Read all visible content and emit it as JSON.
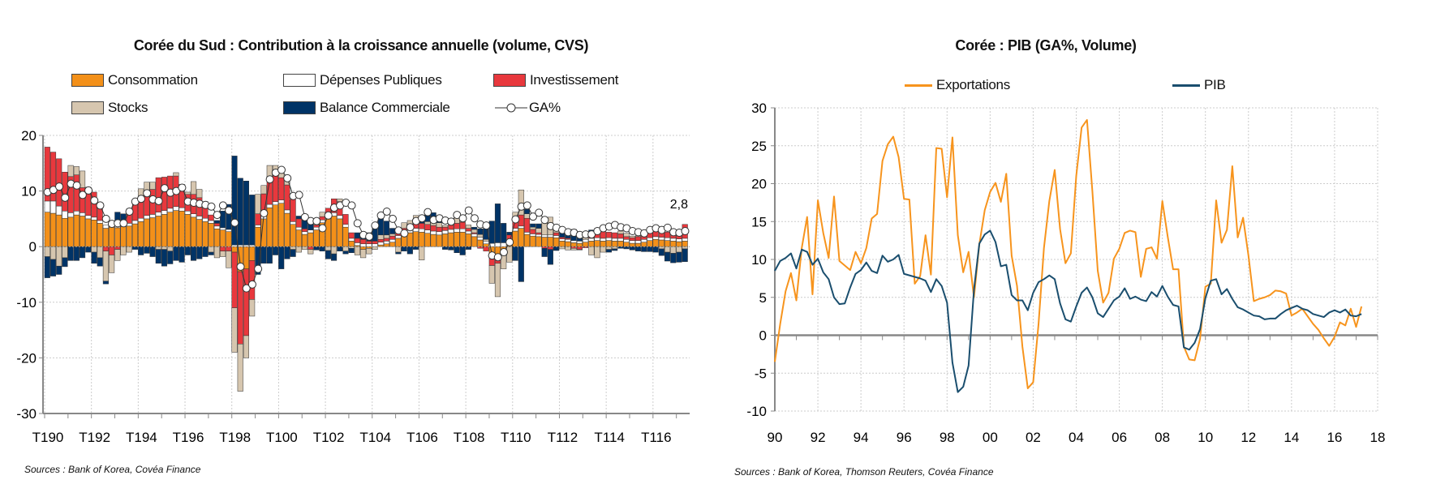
{
  "colors": {
    "consommation": "#F39019",
    "depenses": "#FFFFFF",
    "investissement": "#E8383D",
    "stocks": "#D6C6AF",
    "balance": "#003366",
    "exportations": "#F7941D",
    "pib": "#1A4E6E"
  },
  "chart_data": [
    {
      "type": "bar",
      "stacked": true,
      "title": "Corée du Sud : Contribution à la croissance annuelle (volume, CVS)",
      "source": "Sources : Bank of Korea, Covéa Finance",
      "frequency": "quarterly",
      "start": "1990Q1",
      "ylim": [
        -30,
        20
      ],
      "yticks": [
        "20",
        "10",
        "0",
        "-10",
        "-20",
        "-30"
      ],
      "xtick_labels": [
        "T190",
        "T192",
        "T194",
        "T196",
        "T198",
        "T100",
        "T102",
        "T104",
        "T106",
        "T108",
        "T110",
        "T112",
        "T114",
        "T116"
      ],
      "grid": true,
      "legend_position": "top",
      "last_label": "2,8",
      "series": [
        {
          "name": "Consommation",
          "values": [
            6.2,
            6.0,
            5.7,
            5.1,
            5.3,
            5.7,
            5.5,
            5.0,
            4.8,
            4.2,
            3.3,
            3.5,
            3.4,
            3.6,
            3.7,
            4.1,
            4.5,
            5.0,
            5.2,
            5.5,
            5.8,
            6.2,
            6.5,
            6.4,
            5.8,
            5.3,
            4.9,
            4.5,
            4.2,
            3.2,
            3.0,
            2.7,
            -1.0,
            -4.5,
            -4.0,
            -2.5,
            3.5,
            5.0,
            7.0,
            7.5,
            7.8,
            6.0,
            4.0,
            3.0,
            2.2,
            2.5,
            3.0,
            4.3,
            5.3,
            5.5,
            5.0,
            3.5,
            1.0,
            0.2,
            -0.5,
            -0.3,
            0.0,
            0.3,
            0.5,
            0.8,
            1.5,
            2.0,
            2.5,
            2.7,
            2.6,
            2.4,
            2.2,
            2.1,
            2.3,
            2.5,
            2.6,
            2.6,
            2.3,
            1.8,
            1.2,
            0.5,
            -1.3,
            -1.5,
            -1.0,
            0.5,
            2.8,
            3.3,
            2.2,
            1.9,
            1.8,
            1.7,
            1.7,
            1.6,
            1.0,
            0.9,
            0.7,
            0.6,
            0.8,
            1.0,
            1.1,
            1.0,
            1.1,
            1.0,
            1.0,
            0.8,
            0.6,
            0.6,
            0.8,
            1.1,
            1.3,
            1.2,
            1.1,
            1.0,
            0.9,
            1.0
          ]
        },
        {
          "name": "Dépenses Publiques",
          "values": [
            2.0,
            2.2,
            1.6,
            1.3,
            0.8,
            0.7,
            0.6,
            0.6,
            0.5,
            0.5,
            0.6,
            0.6,
            0.6,
            0.6,
            0.5,
            0.6,
            0.6,
            0.6,
            0.6,
            0.7,
            0.7,
            0.7,
            0.7,
            0.6,
            0.6,
            0.6,
            0.6,
            0.6,
            0.5,
            0.5,
            0.4,
            0.4,
            0.3,
            0.3,
            0.3,
            0.3,
            0.4,
            0.5,
            0.6,
            0.6,
            0.6,
            0.6,
            0.5,
            0.5,
            0.5,
            0.5,
            0.5,
            0.5,
            0.6,
            0.6,
            0.6,
            0.5,
            0.5,
            0.5,
            0.5,
            0.5,
            0.5,
            0.5,
            0.5,
            0.5,
            0.5,
            0.6,
            0.6,
            0.6,
            0.6,
            0.6,
            0.6,
            0.6,
            0.6,
            0.6,
            0.6,
            0.6,
            0.5,
            0.5,
            0.5,
            0.5,
            0.6,
            0.7,
            0.7,
            0.6,
            0.5,
            0.4,
            0.4,
            0.4,
            0.4,
            0.4,
            0.4,
            0.4,
            0.4,
            0.4,
            0.4,
            0.4,
            0.5,
            0.5,
            0.5,
            0.5,
            0.5,
            0.5,
            0.5,
            0.5,
            0.5,
            0.5,
            0.5,
            0.5,
            0.5,
            0.5,
            0.5,
            0.5,
            0.5,
            0.5
          ]
        },
        {
          "name": "Investissement",
          "values": [
            9.7,
            8.8,
            8.5,
            7.0,
            6.5,
            6.5,
            4.5,
            4.5,
            4.5,
            2.5,
            -0.8,
            -1.5,
            -0.5,
            0.5,
            2.0,
            3.5,
            4.0,
            4.0,
            4.5,
            6.2,
            6.0,
            5.8,
            5.5,
            3.0,
            3.0,
            3.5,
            3.3,
            2.0,
            1.0,
            0.5,
            -0.8,
            -0.8,
            -10.0,
            -13.0,
            -12.0,
            -7.0,
            2.0,
            4.0,
            5.0,
            5.0,
            4.0,
            4.5,
            4.0,
            1.5,
            0.5,
            -0.5,
            0.4,
            0.6,
            1.0,
            2.5,
            2.5,
            1.8,
            1.0,
            0.8,
            0.8,
            0.5,
            0.5,
            0.5,
            0.5,
            0.6,
            0.6,
            0.7,
            0.8,
            1.3,
            1.0,
            1.0,
            1.0,
            0.8,
            0.6,
            0.8,
            1.0,
            1.2,
            0.5,
            0.2,
            -0.3,
            -0.8,
            -2.1,
            -1.5,
            -0.5,
            1.0,
            2.0,
            2.0,
            2.5,
            0.8,
            0.3,
            -0.3,
            -0.5,
            0.5,
            0.3,
            0.2,
            -0.3,
            -0.5,
            -0.2,
            0.5,
            1.0,
            1.5,
            1.0,
            1.0,
            0.8,
            0.5,
            0.5,
            0.7,
            1.0,
            1.2,
            1.3,
            1.5,
            1.0,
            0.8,
            1.5,
            2.5
          ]
        },
        {
          "name": "Stocks",
          "values": [
            -1.8,
            -2.3,
            -3.5,
            -2.0,
            2.0,
            1.5,
            3.0,
            0.6,
            -1.0,
            -2.0,
            -5.4,
            -3.2,
            -2.0,
            -1.5,
            -1.0,
            0.3,
            1.3,
            2.0,
            1.3,
            -0.5,
            -0.5,
            -0.8,
            0.6,
            1.2,
            0.4,
            2.3,
            1.5,
            1.0,
            -1.0,
            -2.0,
            -1.0,
            -3.0,
            -8.0,
            -8.5,
            -4.0,
            -3.0,
            3.5,
            1.5,
            2.0,
            1.5,
            1.0,
            0.8,
            -0.5,
            -1.0,
            -0.5,
            -0.8,
            0.5,
            0.8,
            -0.7,
            -1.3,
            0.5,
            -0.8,
            -0.3,
            -1.5,
            -1.5,
            -1.0,
            -0.5,
            0.8,
            0.6,
            0.4,
            -1.0,
            1.0,
            0.8,
            1.0,
            -2.4,
            0.5,
            1.0,
            0.8,
            0.3,
            0.4,
            1.1,
            1.2,
            0.6,
            0.6,
            0.5,
            0.3,
            -3.2,
            -6.0,
            -2.5,
            -2.8,
            0.9,
            4.5,
            0.8,
            0.4,
            0.8,
            2.5,
            3.2,
            0.5,
            -0.4,
            -0.6,
            -0.3,
            -0.1,
            0.6,
            -1.5,
            -2.0,
            -1.0,
            -0.5,
            -0.4,
            0.5,
            0.6,
            0.3,
            0.2,
            0.4,
            0.6,
            0.5,
            -0.4,
            -1.0,
            -1.2,
            -1.0,
            -0.4
          ]
        },
        {
          "name": "Balance Commerciale",
          "values": [
            -3.8,
            -3.0,
            -1.5,
            -1.6,
            -2.5,
            -2.5,
            -2.0,
            -1.0,
            -2.0,
            -1.5,
            -0.5,
            0.5,
            2.2,
            1.2,
            0.6,
            -0.5,
            -1.5,
            -1.2,
            -1.8,
            -2.5,
            -3.0,
            -2.3,
            -2.5,
            -2.8,
            -1.5,
            -2.5,
            -2.2,
            -1.8,
            -0.5,
            0.5,
            3.0,
            4.5,
            16.0,
            12.0,
            11.5,
            9.0,
            -5.0,
            -3.0,
            -3.0,
            -1.5,
            -4.0,
            -2.2,
            -1.3,
            0.5,
            2.0,
            1.5,
            -0.6,
            -0.8,
            -1.5,
            -1.2,
            -0.8,
            -0.5,
            -0.8,
            1.0,
            1.0,
            1.5,
            2.5,
            3.0,
            2.5,
            1.0,
            -0.3,
            -0.8,
            -1.3,
            -0.5,
            0.5,
            1.5,
            1.3,
            0.6,
            -0.5,
            -0.6,
            -1.1,
            -1.5,
            -0.5,
            0.4,
            1.0,
            2.0,
            4.0,
            7.0,
            3.5,
            0.5,
            -2.5,
            -6.3,
            0.8,
            0.6,
            0.8,
            -1.5,
            -2.7,
            -0.7,
            1.0,
            1.5,
            2.0,
            1.2,
            0.5,
            1.0,
            0.7,
            0.5,
            -0.5,
            -0.3,
            -0.3,
            -0.4,
            -0.6,
            -0.8,
            -0.9,
            -0.9,
            -1.0,
            -1.2,
            -1.6,
            -1.7,
            -1.8,
            -2.3
          ]
        },
        {
          "name": "GA%",
          "type": "line",
          "values": [
            9.8,
            10.2,
            10.8,
            8.8,
            11.3,
            11.0,
            9.3,
            10.1,
            8.3,
            7.4,
            5.0,
            4.1,
            4.2,
            4.2,
            6.3,
            8.1,
            8.6,
            9.6,
            8.5,
            8.2,
            10.5,
            9.7,
            10.0,
            10.6,
            8.1,
            7.9,
            7.7,
            7.5,
            7.2,
            5.7,
            7.4,
            6.5,
            4.3,
            -3.6,
            -7.5,
            -6.8,
            -4.0,
            6.0,
            12.1,
            13.3,
            13.8,
            12.3,
            9.1,
            9.3,
            5.3,
            4.6,
            4.6,
            3.3,
            5.6,
            7.0,
            7.4,
            7.9,
            7.4,
            4.2,
            2.1,
            1.8,
            3.8,
            5.6,
            6.3,
            5.0,
            2.9,
            2.4,
            3.5,
            4.6,
            5.1,
            6.2,
            4.8,
            5.1,
            4.7,
            4.5,
            5.7,
            5.1,
            6.5,
            5.1,
            4.0,
            3.8,
            -1.6,
            -1.9,
            -1.0,
            0.8,
            4.9,
            7.2,
            7.4,
            5.4,
            6.1,
            4.8,
            3.7,
            3.4,
            3.0,
            2.6,
            2.5,
            2.1,
            2.2,
            2.2,
            2.8,
            3.3,
            3.6,
            3.9,
            3.5,
            3.3,
            2.8,
            2.6,
            2.4,
            3.0,
            3.3,
            3.0,
            3.4,
            2.6,
            2.5,
            2.8
          ]
        }
      ]
    },
    {
      "type": "line",
      "title": "Corée : PIB (GA%, Volume)",
      "source": "Sources : Bank of Korea, Thomson Reuters, Covéa Finance",
      "frequency": "quarterly",
      "start": "1990Q1",
      "xlim": [
        1990,
        2018
      ],
      "ylim": [
        -10,
        30
      ],
      "yticks": [
        "30",
        "25",
        "20",
        "15",
        "10",
        "5",
        "0",
        "-5",
        "-10"
      ],
      "xtick_labels": [
        "90",
        "92",
        "94",
        "96",
        "98",
        "00",
        "02",
        "04",
        "06",
        "08",
        "10",
        "12",
        "14",
        "16",
        "18"
      ],
      "grid": true,
      "legend_position": "top",
      "series": [
        {
          "name": "Exportations",
          "values": [
            -3.5,
            1.5,
            5.8,
            8.2,
            4.6,
            11.5,
            15.6,
            5.4,
            17.8,
            13.5,
            10.2,
            18.3,
            9.8,
            9.2,
            8.6,
            11.0,
            9.5,
            11.5,
            15.4,
            16.0,
            23.0,
            25.2,
            26.2,
            23.5,
            18.0,
            17.9,
            6.8,
            7.8,
            13.2,
            8.0,
            24.7,
            24.6,
            18.2,
            26.1,
            13.2,
            8.3,
            11.0,
            5.0,
            12.0,
            16.5,
            18.9,
            20.1,
            17.6,
            21.3,
            10.5,
            6.5,
            -1.5,
            -7.0,
            -6.2,
            1.5,
            11.5,
            17.7,
            21.8,
            14.0,
            9.5,
            10.8,
            21.0,
            27.4,
            28.4,
            19.0,
            8.5,
            4.3,
            5.6,
            10.1,
            11.4,
            13.5,
            13.8,
            13.6,
            7.7,
            11.4,
            11.6,
            10.1,
            17.7,
            13.0,
            8.7,
            8.7,
            -1.5,
            -3.2,
            -3.3,
            -0.5,
            6.4,
            6.8,
            17.8,
            12.2,
            13.9,
            22.3,
            12.9,
            15.5,
            10.5,
            4.5,
            4.8,
            5.0,
            5.3,
            5.9,
            5.8,
            5.5,
            2.6,
            3.0,
            3.5,
            2.5,
            1.5,
            0.7,
            -0.4,
            -1.4,
            -0.2,
            1.7,
            1.3,
            3.5,
            1.1,
            3.8
          ]
        },
        {
          "name": "PIB",
          "values": [
            8.5,
            9.8,
            10.2,
            10.8,
            8.8,
            11.3,
            11.0,
            9.3,
            10.1,
            8.3,
            7.4,
            5.0,
            4.1,
            4.2,
            6.3,
            8.1,
            8.6,
            9.6,
            8.5,
            8.2,
            10.5,
            9.7,
            10.0,
            10.6,
            8.1,
            7.9,
            7.7,
            7.5,
            7.2,
            5.7,
            7.4,
            6.5,
            4.3,
            -3.6,
            -7.5,
            -6.8,
            -4.0,
            6.0,
            12.1,
            13.3,
            13.8,
            12.3,
            9.1,
            9.3,
            5.3,
            4.6,
            4.6,
            3.3,
            5.6,
            7.0,
            7.4,
            7.9,
            7.4,
            4.2,
            2.1,
            1.8,
            3.8,
            5.6,
            6.3,
            5.0,
            2.9,
            2.4,
            3.5,
            4.6,
            5.1,
            6.2,
            4.8,
            5.1,
            4.7,
            4.5,
            5.7,
            5.1,
            6.5,
            5.1,
            4.0,
            3.8,
            -1.6,
            -1.9,
            -1.0,
            0.8,
            4.9,
            7.2,
            7.4,
            5.4,
            6.1,
            4.8,
            3.7,
            3.4,
            3.0,
            2.6,
            2.5,
            2.1,
            2.2,
            2.2,
            2.8,
            3.3,
            3.6,
            3.9,
            3.5,
            3.3,
            2.8,
            2.6,
            2.4,
            3.0,
            3.3,
            3.0,
            3.4,
            2.6,
            2.5,
            2.8
          ]
        }
      ]
    }
  ]
}
